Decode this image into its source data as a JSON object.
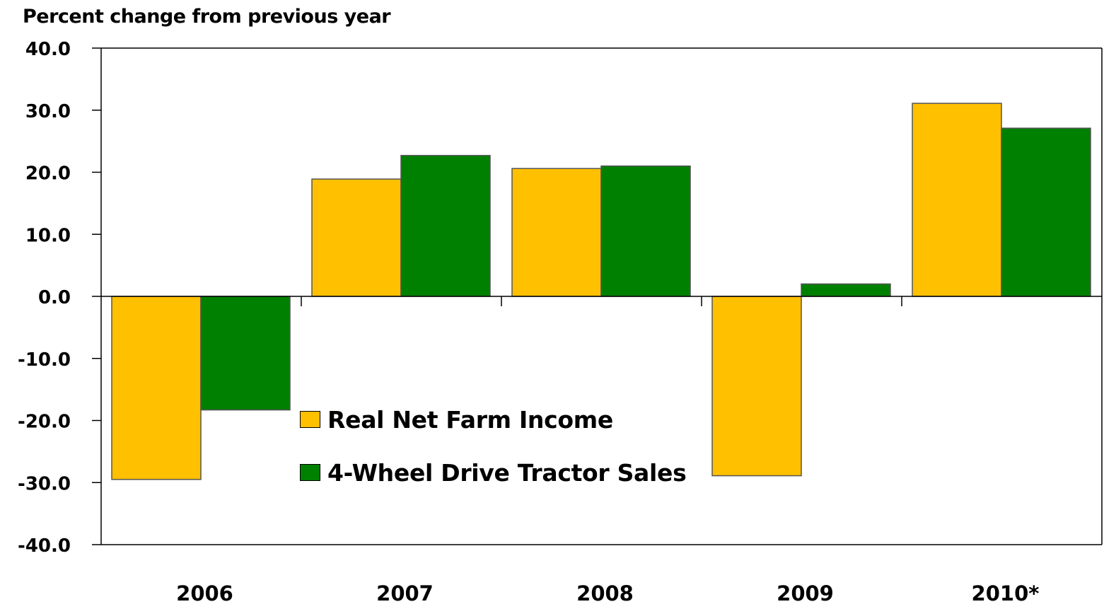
{
  "chart_data": {
    "type": "bar",
    "ylabel": "Percent change from previous year",
    "categories": [
      "2006",
      "2007",
      "2008",
      "2009",
      "2010*"
    ],
    "series": [
      {
        "name": "Real Net Farm Income",
        "color": "#FFC000",
        "values": [
          -29.5,
          18.9,
          20.6,
          -28.9,
          31.1
        ]
      },
      {
        "name": "4-Wheel Drive Tractor Sales",
        "color": "#008000",
        "values": [
          -18.3,
          22.7,
          21.0,
          2.0,
          27.1
        ]
      }
    ],
    "yticks": [
      "40.0",
      "30.0",
      "20.0",
      "10.0",
      "0.0",
      "-10.0",
      "-20.0",
      "-30.0",
      "-40.0"
    ],
    "ylim": [
      -40,
      40
    ],
    "grid": false,
    "legend_position": "bottom-center"
  }
}
